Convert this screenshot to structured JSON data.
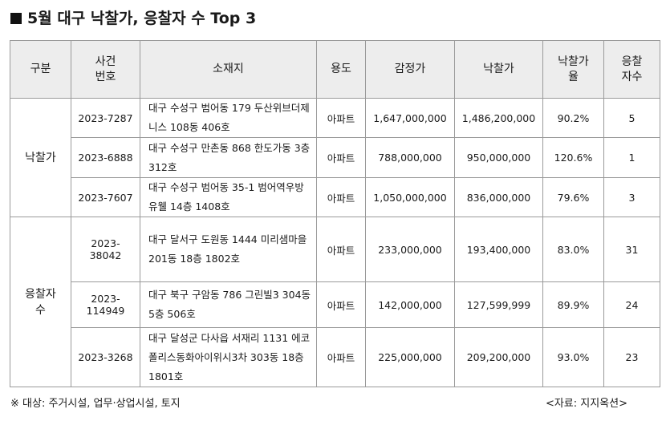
{
  "title": "5월 대구 낙찰가, 응찰자 수 Top 3",
  "headers": [
    "구분",
    "사건\n번호",
    "소재지",
    "용도",
    "감정가",
    "낙찰가",
    "낙찰가\n율",
    "응찰\n자수"
  ],
  "groups": [
    {
      "label": "낙찰가",
      "rows": [
        {
          "case": "2023-7287",
          "address": "대구 수성구 범어동 179 두산위브더제니스 108동 406호",
          "use": "아파트",
          "appraisal": "1,647,000,000",
          "winning_bid": "1,486,200,000",
          "rate": "90.2%",
          "bidders": "5"
        },
        {
          "case": "2023-6888",
          "address": "대구 수성구 만촌동 868 한도가동 3층 312호",
          "use": "아파트",
          "appraisal": "788,000,000",
          "winning_bid": "950,000,000",
          "rate": "120.6%",
          "bidders": "1"
        },
        {
          "case": "2023-7607",
          "address": "대구 수성구 범어동 35-1 범어역우방유웰 14층 1408호",
          "use": "아파트",
          "appraisal": "1,050,000,000",
          "winning_bid": "836,000,000",
          "rate": "79.6%",
          "bidders": "3"
        }
      ]
    },
    {
      "label": "응찰자\n수",
      "rows": [
        {
          "case": "2023-\n38042",
          "address": "대구 달서구 도원동 1444 미리샘마을 201동 18층 1802호",
          "use": "아파트",
          "appraisal": "233,000,000",
          "winning_bid": "193,400,000",
          "rate": "83.0%",
          "bidders": "31"
        },
        {
          "case": "2023-\n114949",
          "address": "대구 북구 구암동 786 그린빌3 304동 5층 506호",
          "use": "아파트",
          "appraisal": "142,000,000",
          "winning_bid": "127,599,999",
          "rate": "89.9%",
          "bidders": "24"
        },
        {
          "case": "2023-3268",
          "address": "대구 달성군 다사읍 서재리 1131 에코폴리스동화아이위시3차 303동 18층 1801호",
          "use": "아파트",
          "appraisal": "225,000,000",
          "winning_bid": "209,200,000",
          "rate": "93.0%",
          "bidders": "23"
        }
      ]
    }
  ],
  "footnote": "※ 대상: 주거시설, 업무·상업시설, 토지",
  "source": "<자료: 지지옥션>"
}
